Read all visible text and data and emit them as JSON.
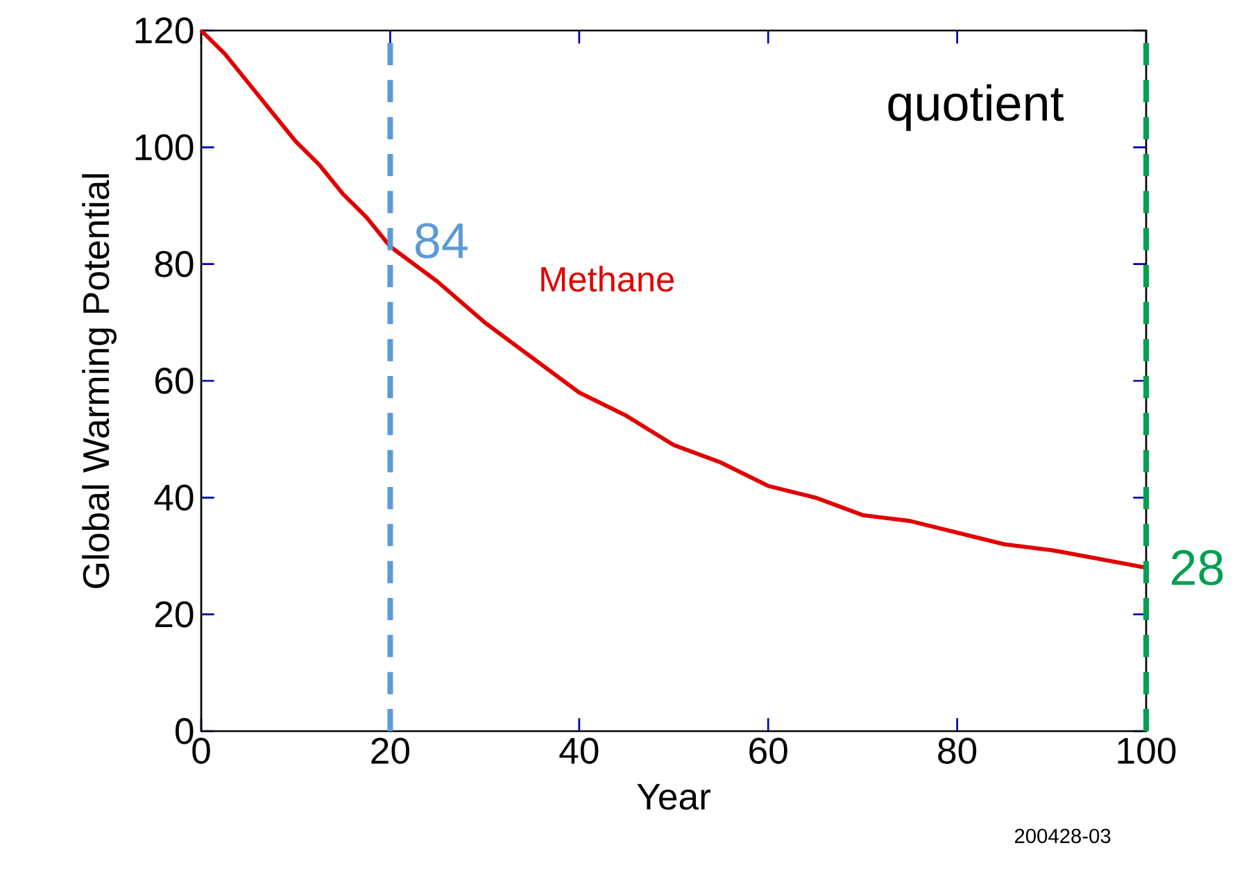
{
  "chart_data": {
    "type": "line",
    "xlabel": "Year",
    "ylabel": "Global Warming Potential",
    "x": [
      0,
      2.5,
      5,
      7.5,
      10,
      12.5,
      15,
      17.5,
      20,
      25,
      30,
      35,
      40,
      45,
      50,
      55,
      60,
      65,
      70,
      75,
      80,
      85,
      90,
      95,
      100
    ],
    "series": [
      {
        "name": "Methane",
        "color": "#e00000",
        "values": [
          120,
          116,
          111,
          106,
          101,
          97,
          92,
          88,
          83,
          77,
          70,
          64,
          58,
          54,
          49,
          46,
          42,
          40,
          37,
          36,
          34,
          32,
          31,
          29.5,
          28
        ]
      }
    ],
    "xlim": [
      0,
      100
    ],
    "xticks": [
      0,
      20,
      40,
      60,
      80,
      100
    ],
    "ylim": [
      0,
      120
    ],
    "yticks": [
      0,
      20,
      40,
      60,
      80,
      100,
      120
    ],
    "grid": false,
    "marker": "none",
    "line_style": "solid",
    "ref_lines": [
      {
        "axis": "x",
        "value": 20,
        "color": "#5b9bd5",
        "line_style": "dashed"
      },
      {
        "axis": "x",
        "value": 100,
        "color": "#00a050",
        "line_style": "dashed"
      }
    ],
    "annotations": [
      {
        "text": "84",
        "x": 20,
        "y": 84
      },
      {
        "text": "28",
        "x": 100,
        "y": 28
      },
      "quotient",
      "200428-03"
    ]
  }
}
